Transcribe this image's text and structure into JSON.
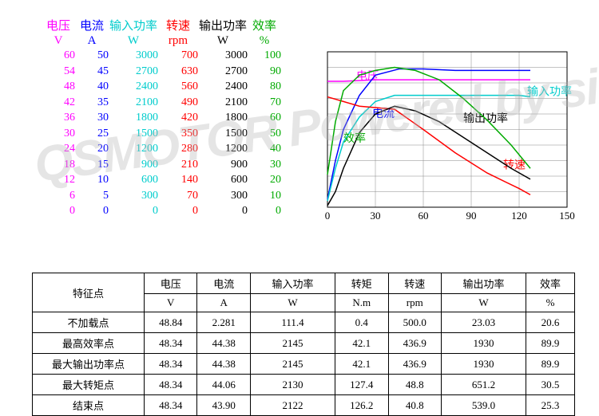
{
  "headers": [
    {
      "name": "电压",
      "unit": "V",
      "color": "#ff00ff",
      "width": 42
    },
    {
      "name": "电流",
      "unit": "A",
      "color": "#0000ff",
      "width": 42
    },
    {
      "name": "输入功率",
      "unit": "W",
      "color": "#00cccc",
      "width": 62
    },
    {
      "name": "转速",
      "unit": "rpm",
      "color": "#ff0000",
      "width": 50
    },
    {
      "name": "输出功率",
      "unit": "W",
      "color": "#000000",
      "width": 62
    },
    {
      "name": "效率",
      "unit": "%",
      "color": "#00aa00",
      "width": 42
    }
  ],
  "scales": [
    {
      "color": "#ff00ff",
      "width": 42,
      "values": [
        "60",
        "54",
        "48",
        "42",
        "36",
        "30",
        "24",
        "18",
        "12",
        "6",
        "0"
      ]
    },
    {
      "color": "#0000ff",
      "width": 42,
      "values": [
        "50",
        "45",
        "40",
        "35",
        "30",
        "25",
        "20",
        "15",
        "10",
        "5",
        "0"
      ]
    },
    {
      "color": "#00cccc",
      "width": 62,
      "values": [
        "3000",
        "2700",
        "2400",
        "2100",
        "1800",
        "1500",
        "1200",
        "900",
        "600",
        "300",
        "0"
      ]
    },
    {
      "color": "#ff0000",
      "width": 50,
      "values": [
        "700",
        "630",
        "560",
        "490",
        "420",
        "350",
        "280",
        "210",
        "140",
        "70",
        "0"
      ]
    },
    {
      "color": "#000000",
      "width": 62,
      "values": [
        "3000",
        "2700",
        "2400",
        "2100",
        "1800",
        "1500",
        "1200",
        "900",
        "600",
        "300",
        "0"
      ]
    },
    {
      "color": "#00aa00",
      "width": 42,
      "values": [
        "100",
        "90",
        "80",
        "70",
        "60",
        "50",
        "40",
        "30",
        "20",
        "10",
        "0"
      ]
    }
  ],
  "chart": {
    "xlim": [
      0,
      150
    ],
    "ylim": [
      0,
      100
    ],
    "xticks": [
      0,
      30,
      60,
      90,
      120,
      150
    ],
    "grid_color": "#888",
    "series": [
      {
        "label": "电压",
        "color": "#ff00ff",
        "label_x": 18,
        "label_y": 82,
        "points": [
          [
            0,
            81
          ],
          [
            10,
            81
          ],
          [
            30,
            82
          ],
          [
            60,
            82
          ],
          [
            90,
            82
          ],
          [
            120,
            82
          ],
          [
            127,
            82
          ]
        ]
      },
      {
        "label": "电流",
        "color": "#0000ff",
        "label_x": 28,
        "label_y": 58,
        "points": [
          [
            0,
            5
          ],
          [
            5,
            30
          ],
          [
            10,
            50
          ],
          [
            20,
            72
          ],
          [
            30,
            85
          ],
          [
            45,
            89
          ],
          [
            60,
            89
          ],
          [
            80,
            88
          ],
          [
            100,
            88
          ],
          [
            120,
            88
          ],
          [
            127,
            88
          ]
        ]
      },
      {
        "label": "输入功率",
        "color": "#00cccc",
        "label_x": 125,
        "label_y": 72,
        "points": [
          [
            0,
            4
          ],
          [
            5,
            25
          ],
          [
            10,
            42
          ],
          [
            20,
            58
          ],
          [
            30,
            68
          ],
          [
            42,
            72
          ],
          [
            60,
            72
          ],
          [
            80,
            72
          ],
          [
            100,
            72
          ],
          [
            120,
            72
          ],
          [
            127,
            71
          ]
        ]
      },
      {
        "label": "转速",
        "color": "#ff0000",
        "label_x": 110,
        "label_y": 25,
        "points": [
          [
            0,
            71
          ],
          [
            10,
            68
          ],
          [
            20,
            65
          ],
          [
            42,
            63
          ],
          [
            60,
            50
          ],
          [
            80,
            35
          ],
          [
            100,
            22
          ],
          [
            120,
            12
          ],
          [
            127,
            8
          ]
        ]
      },
      {
        "label": "输出功率",
        "color": "#000000",
        "label_x": 85,
        "label_y": 55,
        "points": [
          [
            0,
            1
          ],
          [
            5,
            10
          ],
          [
            10,
            25
          ],
          [
            20,
            48
          ],
          [
            30,
            60
          ],
          [
            42,
            65
          ],
          [
            55,
            62
          ],
          [
            70,
            55
          ],
          [
            85,
            45
          ],
          [
            100,
            35
          ],
          [
            115,
            25
          ],
          [
            127,
            18
          ]
        ]
      },
      {
        "label": "效率",
        "color": "#00aa00",
        "label_x": 10,
        "label_y": 42,
        "points": [
          [
            0,
            21
          ],
          [
            5,
            55
          ],
          [
            10,
            75
          ],
          [
            20,
            85
          ],
          [
            30,
            88
          ],
          [
            42,
            90
          ],
          [
            55,
            88
          ],
          [
            70,
            82
          ],
          [
            85,
            70
          ],
          [
            100,
            56
          ],
          [
            115,
            40
          ],
          [
            127,
            25
          ]
        ]
      }
    ]
  },
  "table": {
    "corner": "特征点",
    "cols": [
      {
        "name": "电压",
        "unit": "V"
      },
      {
        "name": "电流",
        "unit": "A"
      },
      {
        "name": "输入功率",
        "unit": "W"
      },
      {
        "name": "转矩",
        "unit": "N.m"
      },
      {
        "name": "转速",
        "unit": "rpm"
      },
      {
        "name": "输出功率",
        "unit": "W"
      },
      {
        "name": "效率",
        "unit": "%"
      }
    ],
    "rows": [
      {
        "label": "不加载点",
        "cells": [
          "48.84",
          "2.281",
          "111.4",
          "0.4",
          "500.0",
          "23.03",
          "20.6"
        ]
      },
      {
        "label": "最高效率点",
        "cells": [
          "48.34",
          "44.38",
          "2145",
          "42.1",
          "436.9",
          "1930",
          "89.9"
        ]
      },
      {
        "label": "最大输出功率点",
        "cells": [
          "48.34",
          "44.38",
          "2145",
          "42.1",
          "436.9",
          "1930",
          "89.9"
        ]
      },
      {
        "label": "最大转矩点",
        "cells": [
          "48.34",
          "44.06",
          "2130",
          "127.4",
          "48.8",
          "651.2",
          "30.5"
        ]
      },
      {
        "label": "结束点",
        "cells": [
          "48.34",
          "43.90",
          "2122",
          "126.2",
          "40.8",
          "539.0",
          "25.3"
        ]
      }
    ]
  },
  "watermark": "QSMOTOR Powered by siA"
}
